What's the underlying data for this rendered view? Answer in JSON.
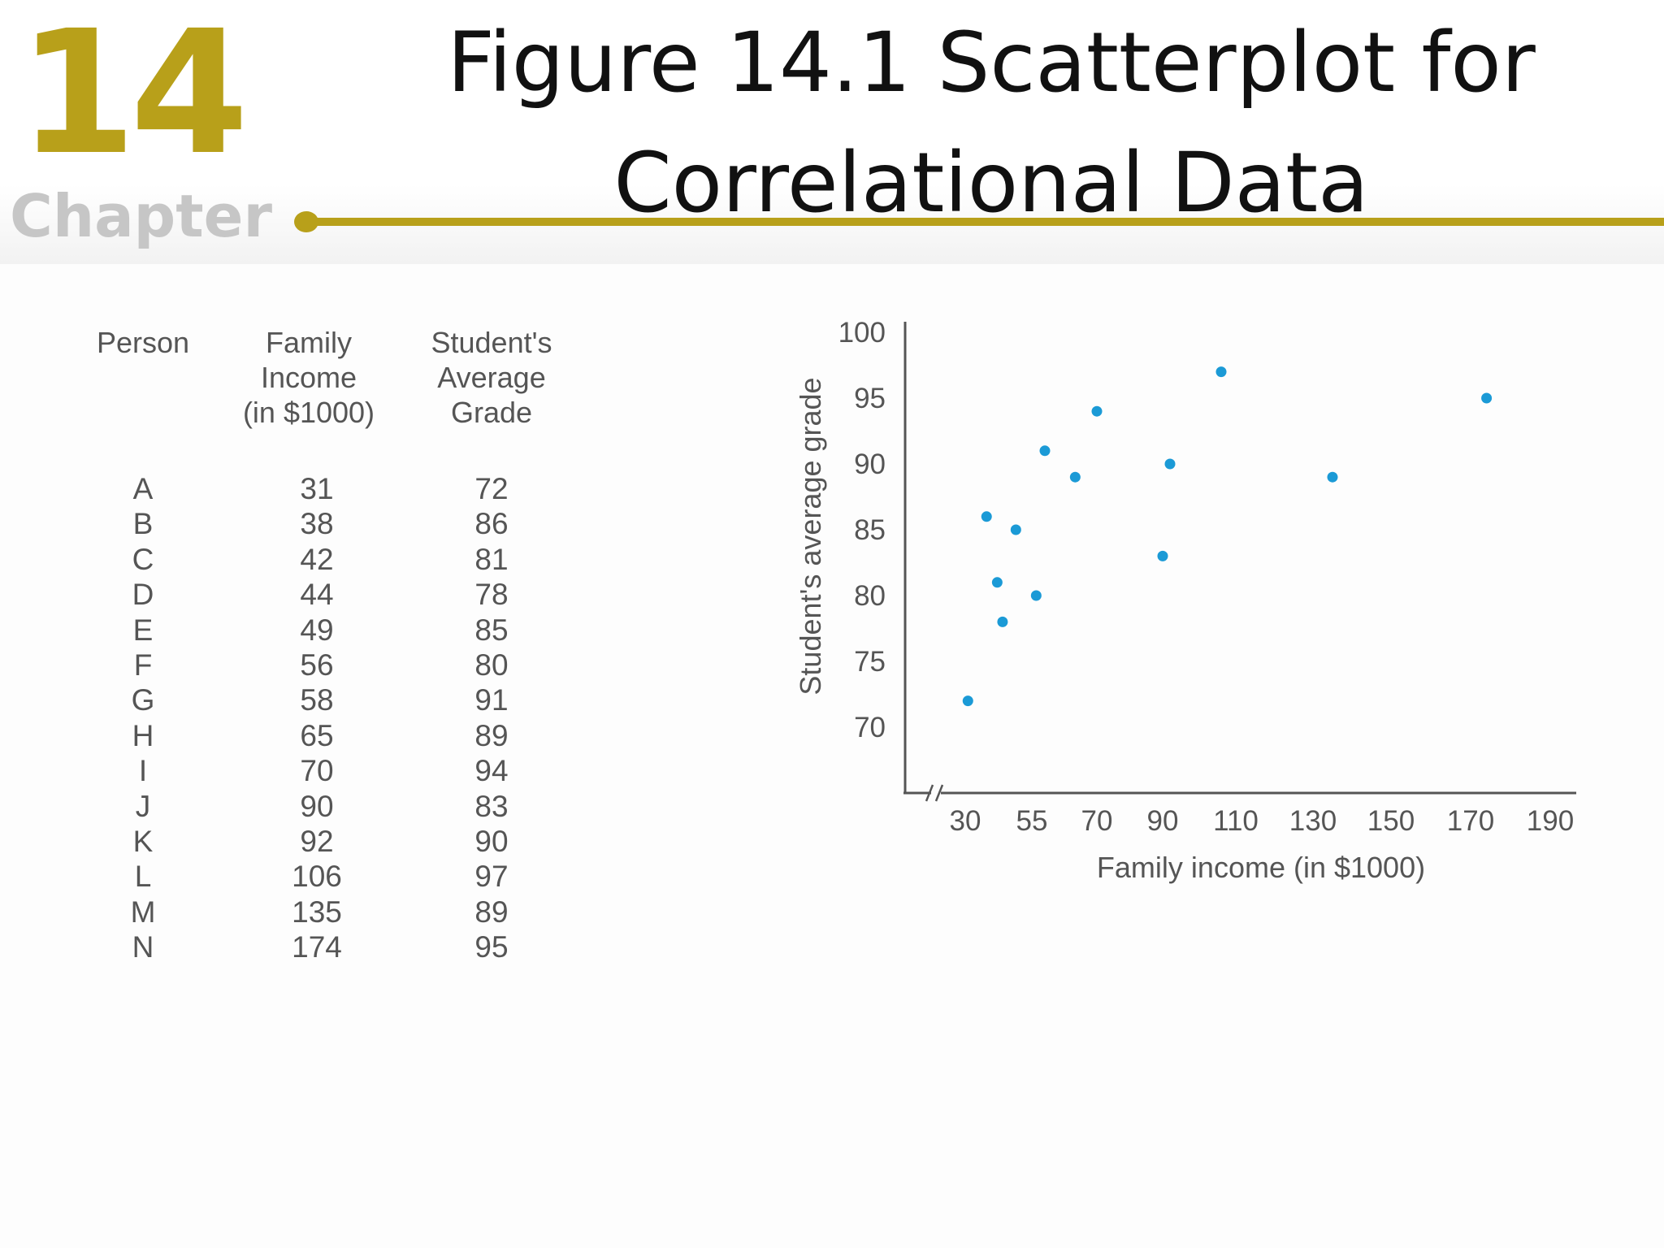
{
  "header": {
    "chapter_number": "14",
    "chapter_word": "Chapter",
    "title_line1": "Figure 14.1  Scatterplot  for",
    "title_line2": "Correlational Data"
  },
  "colors": {
    "accent_gold": "#b8a01a",
    "point_blue": "#1b9ad6",
    "text_gray": "#555555"
  },
  "table": {
    "headers": [
      "Person",
      "Family\nIncome\n(in $1000)",
      "Student's\nAverage\nGrade"
    ],
    "rows": [
      [
        "A",
        "31",
        "72"
      ],
      [
        "B",
        "38",
        "86"
      ],
      [
        "C",
        "42",
        "81"
      ],
      [
        "D",
        "44",
        "78"
      ],
      [
        "E",
        "49",
        "85"
      ],
      [
        "F",
        "56",
        "80"
      ],
      [
        "G",
        "58",
        "91"
      ],
      [
        "H",
        "65",
        "89"
      ],
      [
        "I",
        "70",
        "94"
      ],
      [
        "J",
        "90",
        "83"
      ],
      [
        "K",
        "92",
        "90"
      ],
      [
        "L",
        "106",
        "97"
      ],
      [
        "M",
        "135",
        "89"
      ],
      [
        "N",
        "174",
        "95"
      ]
    ]
  },
  "chart_data": {
    "type": "scatter",
    "title": "",
    "xlabel": "Family income (in $1000)",
    "ylabel": "Student's average grade",
    "x_ticks": [
      30,
      55,
      70,
      90,
      110,
      130,
      150,
      170,
      190
    ],
    "y_ticks": [
      70,
      75,
      80,
      85,
      90,
      95,
      100
    ],
    "ylim": [
      70,
      100
    ],
    "axis_break": "x",
    "grid": false,
    "legend": "none",
    "points": [
      {
        "label": "A",
        "x": 31,
        "y": 72
      },
      {
        "label": "B",
        "x": 38,
        "y": 86
      },
      {
        "label": "C",
        "x": 42,
        "y": 81
      },
      {
        "label": "D",
        "x": 44,
        "y": 78
      },
      {
        "label": "E",
        "x": 49,
        "y": 85
      },
      {
        "label": "F",
        "x": 56,
        "y": 80
      },
      {
        "label": "G",
        "x": 58,
        "y": 91
      },
      {
        "label": "H",
        "x": 65,
        "y": 89
      },
      {
        "label": "I",
        "x": 70,
        "y": 94
      },
      {
        "label": "J",
        "x": 90,
        "y": 83
      },
      {
        "label": "K",
        "x": 92,
        "y": 90
      },
      {
        "label": "L",
        "x": 106,
        "y": 97
      },
      {
        "label": "M",
        "x": 135,
        "y": 89
      },
      {
        "label": "N",
        "x": 174,
        "y": 95
      }
    ]
  }
}
